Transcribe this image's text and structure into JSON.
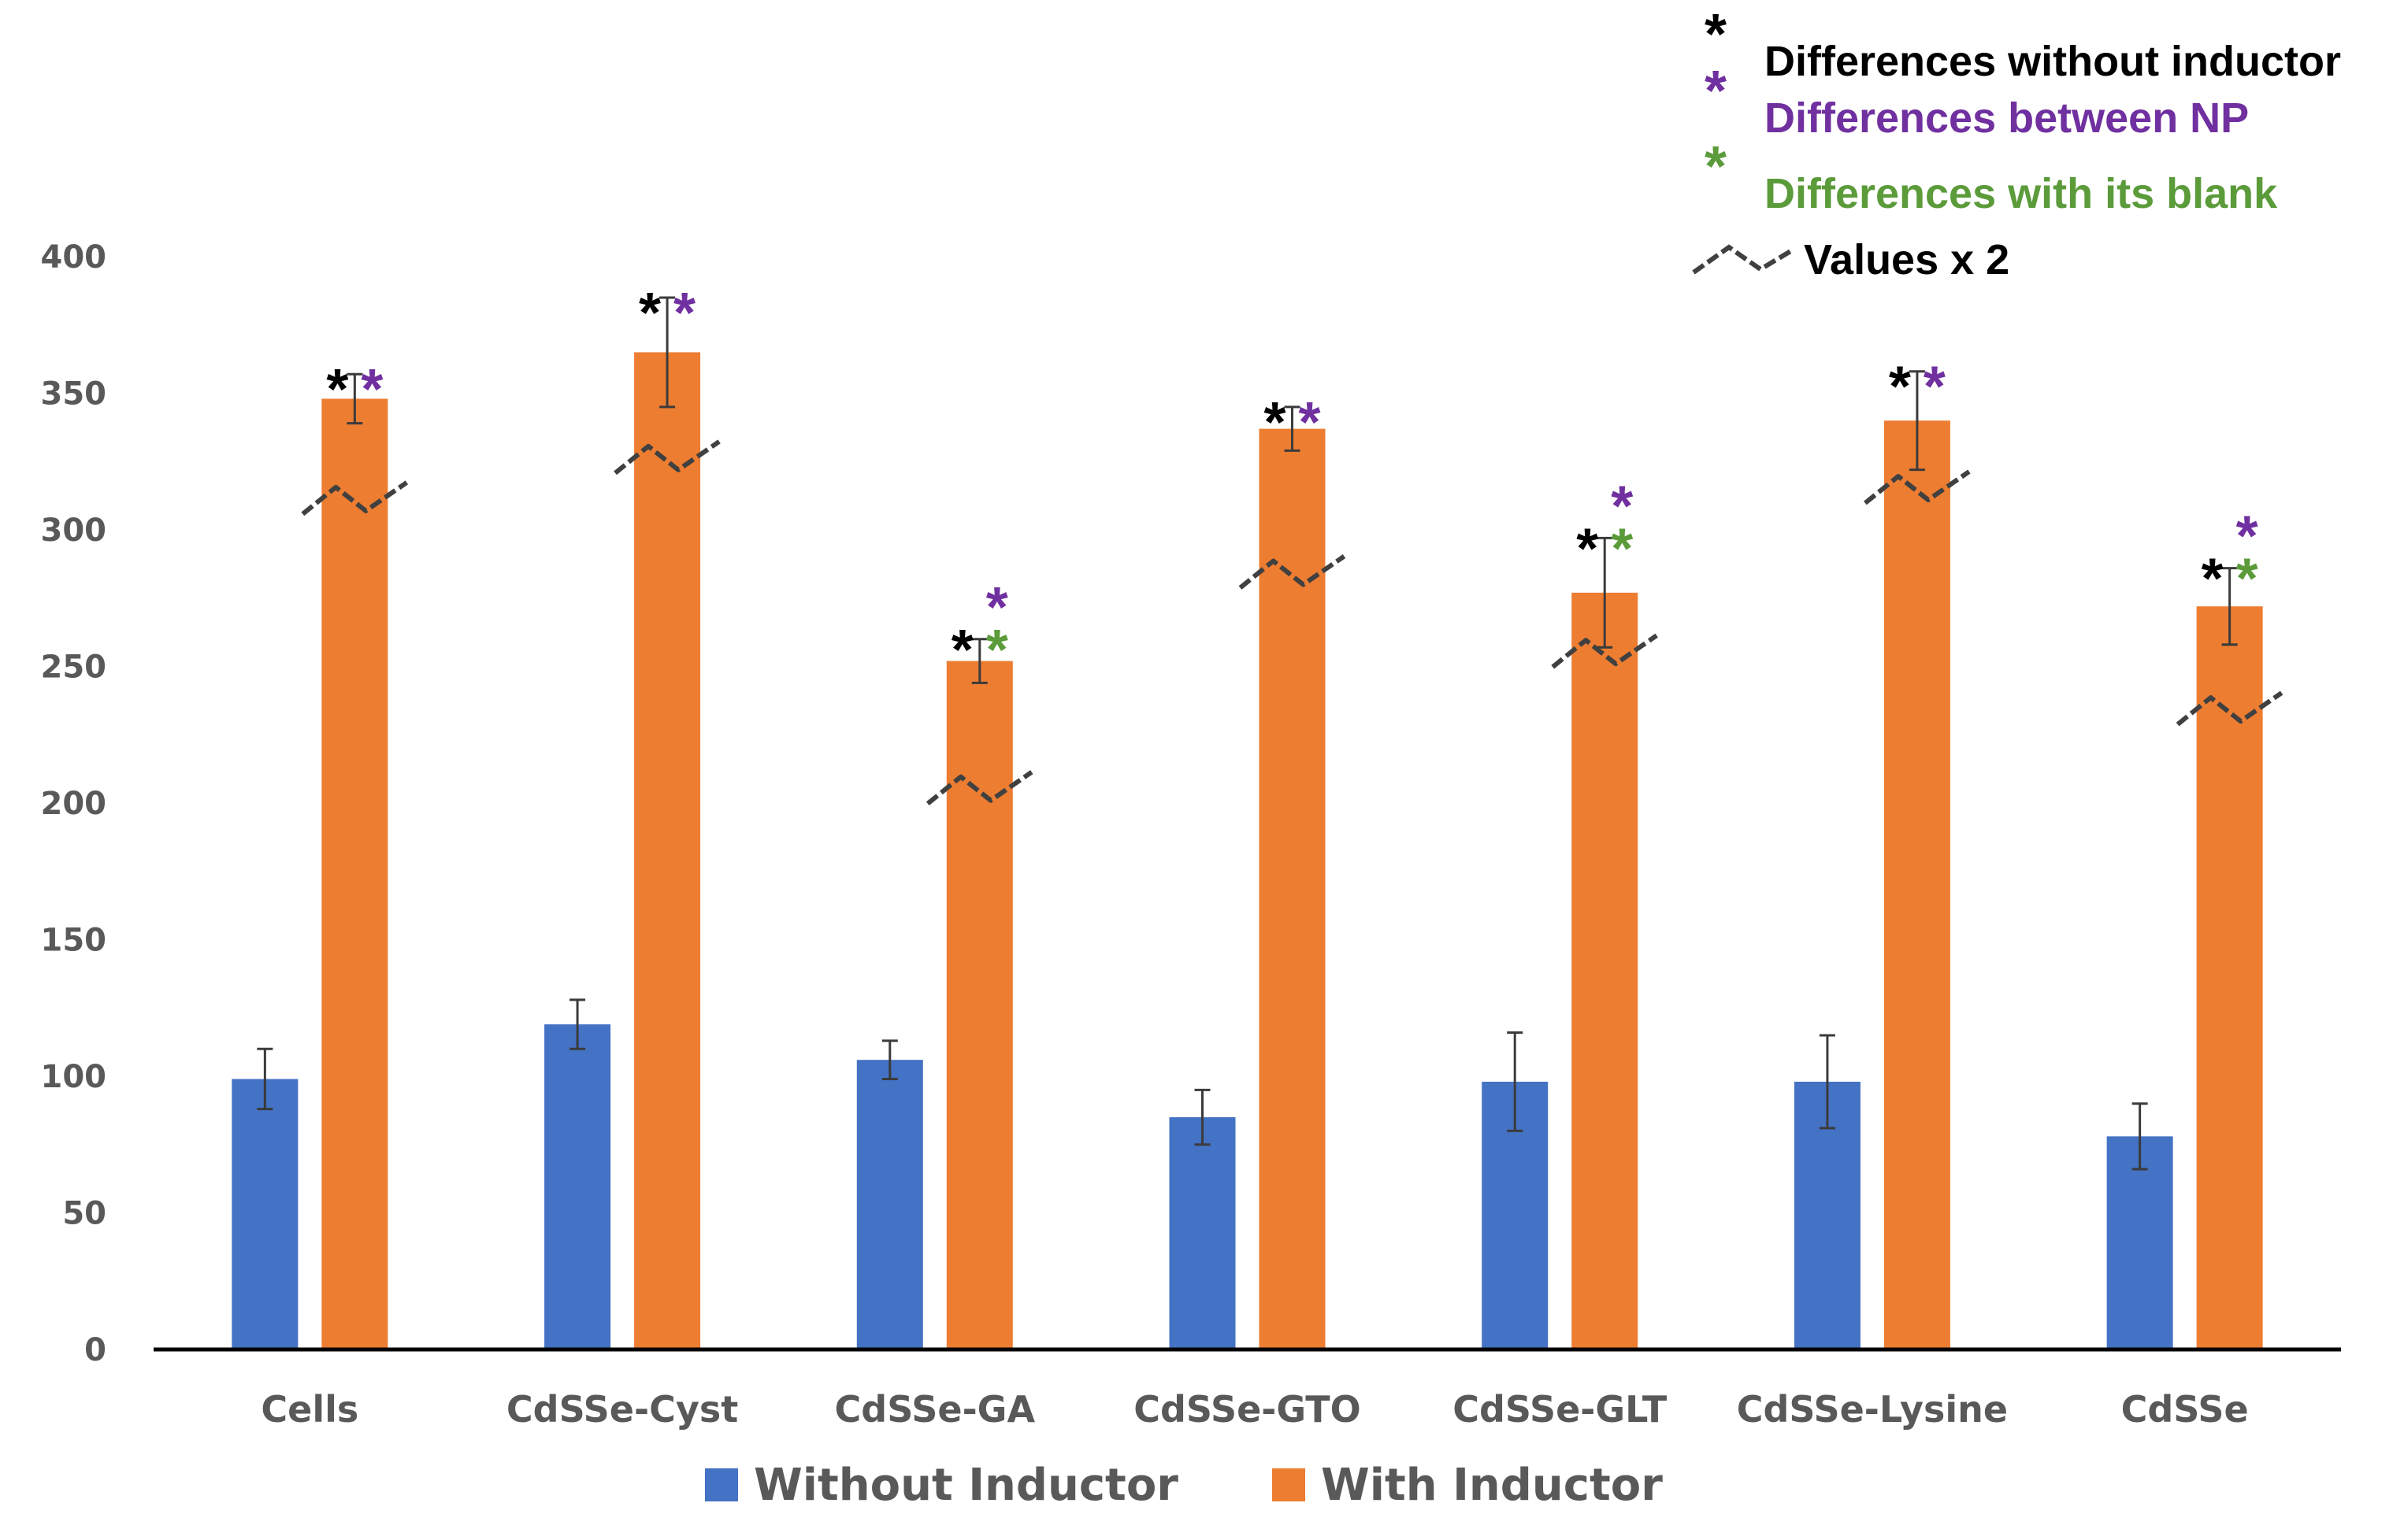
{
  "chart_data": {
    "type": "bar",
    "title": "",
    "xlabel": "",
    "ylabel": "",
    "ylim": [
      0,
      400
    ],
    "yticks": [
      0,
      50,
      100,
      150,
      200,
      250,
      300,
      350,
      400
    ],
    "grid": false,
    "legend_position": "bottom",
    "categories": [
      "Cells",
      "CdSSe-Cyst",
      "CdSSe-GA",
      "CdSSe-GTO",
      "CdSSe-GLT",
      "CdSSe-Lysine",
      "CdSSe"
    ],
    "series": [
      {
        "name": "Without Inductor",
        "color": "#4472C4",
        "values": [
          99,
          119,
          106,
          85,
          98,
          98,
          78
        ],
        "errors": [
          11,
          9,
          7,
          10,
          18,
          17,
          12
        ]
      },
      {
        "name": "With Inductor",
        "color": "#ED7D31",
        "values": [
          348,
          365,
          252,
          337,
          277,
          340,
          272
        ],
        "errors": [
          9,
          20,
          8,
          8,
          20,
          18,
          14
        ],
        "break_marks": [
          311,
          326,
          205,
          284,
          255,
          315,
          234
        ]
      }
    ],
    "annotations": {
      "stars": [
        {
          "category": 0,
          "row1": [
            "black",
            "purple"
          ],
          "row2": []
        },
        {
          "category": 1,
          "row1": [
            "black",
            "purple"
          ],
          "row2": []
        },
        {
          "category": 2,
          "row1": [
            "purple"
          ],
          "row2": [
            "black",
            "green"
          ]
        },
        {
          "category": 3,
          "row1": [
            "black",
            "purple"
          ],
          "row2": []
        },
        {
          "category": 4,
          "row1": [
            "purple"
          ],
          "row2": [
            "black",
            "green"
          ]
        },
        {
          "category": 5,
          "row1": [
            "black",
            "purple"
          ],
          "row2": []
        },
        {
          "category": 6,
          "row1": [
            "purple"
          ],
          "row2": [
            "black",
            "green"
          ]
        }
      ],
      "notes": [
        {
          "symbol": "*",
          "text": "Differences without inductor",
          "color": "#000000"
        },
        {
          "symbol": "*",
          "text": "Differences between NP",
          "color": "#7030A0"
        },
        {
          "symbol": "*",
          "text": "Differences with its blank",
          "color": "#5B9B3A"
        },
        {
          "symbol": "break",
          "text": "Values x 2",
          "color": "#000000"
        }
      ],
      "star_colors": {
        "black": "#000000",
        "purple": "#7030A0",
        "green": "#5B9B3A"
      }
    }
  }
}
